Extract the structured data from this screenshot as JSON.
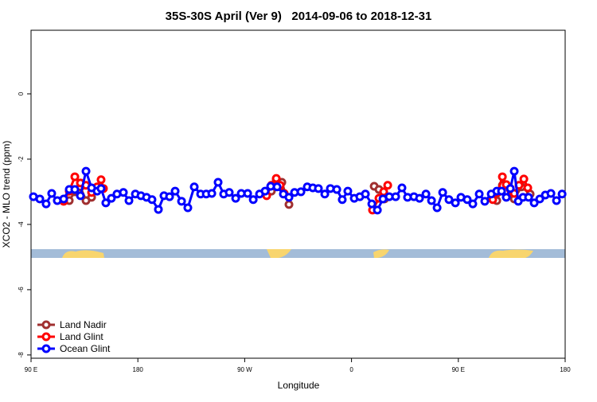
{
  "chart_data": {
    "type": "line",
    "title": "35S-30S April (Ver 9)   2014-09-06 to 2018-12-31",
    "x_label": "Longitude",
    "y_label": "XCO2 - MLO trend (ppm)",
    "xlim": [
      90,
      540
    ],
    "ylim": [
      -8.1,
      1.95
    ],
    "xticks": [
      {
        "value": 90,
        "label": "90 E"
      },
      180,
      {
        "value": 270,
        "label": "90 W"
      },
      {
        "value": 360,
        "label": "0"
      },
      {
        "value": 450,
        "label": "90 E"
      },
      {
        "value": 540,
        "label": "180"
      }
    ],
    "yticks": [
      0,
      -2,
      -4,
      -6,
      -8
    ],
    "legend": "bottom-left",
    "series": [
      {
        "name": "Land Nadir",
        "color": "#a03030",
        "x": [
          122.2,
          126.9,
          131.6,
          136.3,
          141.0,
          null,
          292.5,
          296.6,
          301.3,
          307.3,
          null,
          379.1,
          383.1,
          387.8,
          null,
          482.4,
          487.1,
          490.4,
          497.1,
          503.2,
          510.5
        ],
        "values": [
          -3.27,
          -3.0,
          -2.85,
          -3.27,
          -3.17,
          null,
          -2.98,
          -2.63,
          -2.71,
          -3.39,
          null,
          -2.83,
          -2.93,
          -3.22,
          null,
          -3.27,
          -2.8,
          -2.98,
          -3.22,
          -2.85,
          -3.07
        ]
      },
      {
        "name": "Land Glint",
        "color": "#ff0000",
        "x": [
          117.5,
          122.2,
          126.9,
          131.6,
          136.3,
          141.0,
          145.7,
          149.0,
          151.0,
          null,
          288.5,
          292.5,
          296.6,
          299.9,
          303.3,
          null,
          377.7,
          383.1,
          387.1,
          390.5,
          null,
          479.0,
          483.1,
          487.1,
          490.4,
          493.8,
          497.1,
          501.1,
          505.2,
          508.5
        ],
        "values": [
          -3.29,
          -2.98,
          -2.54,
          -2.73,
          -2.8,
          -3.02,
          -2.85,
          -2.63,
          -2.9,
          null,
          -3.12,
          -2.8,
          -2.59,
          -2.8,
          -3.05,
          null,
          -3.56,
          -3.2,
          -3.0,
          -2.8,
          null,
          -3.24,
          -3.02,
          -2.54,
          -2.78,
          -2.93,
          -3.05,
          -2.8,
          -2.61,
          -2.88
        ]
      },
      {
        "name": "Ocean Glint",
        "color": "#0000ff",
        "x": [
          92.0,
          97.4,
          102.7,
          107.4,
          112.1,
          117.5,
          122.2,
          126.9,
          131.6,
          136.3,
          141.0,
          145.7,
          149.0,
          153.0,
          157.7,
          162.4,
          167.8,
          172.5,
          177.9,
          182.6,
          187.3,
          191.9,
          197.3,
          202.0,
          206.7,
          211.4,
          216.8,
          222.1,
          227.5,
          232.9,
          237.6,
          242.3,
          247.6,
          252.3,
          257.0,
          262.4,
          267.1,
          272.5,
          277.2,
          282.5,
          287.2,
          291.9,
          297.3,
          302.6,
          307.3,
          312.0,
          317.4,
          322.7,
          327.4,
          332.1,
          337.5,
          342.2,
          347.6,
          352.2,
          356.9,
          362.3,
          367.0,
          371.7,
          377.1,
          381.8,
          386.5,
          391.8,
          397.2,
          402.5,
          407.2,
          412.6,
          417.3,
          422.7,
          427.4,
          432.1,
          436.8,
          442.1,
          447.5,
          452.2,
          457.5,
          462.2,
          467.6,
          472.3,
          477.7,
          482.4,
          486.4,
          490.4,
          493.8,
          497.1,
          500.5,
          504.5,
          509.2,
          513.9,
          518.6,
          523.3,
          528.0,
          532.7,
          537.4
        ],
        "values": [
          -3.15,
          -3.22,
          -3.37,
          -3.05,
          -3.27,
          -3.22,
          -2.93,
          -2.93,
          -3.12,
          -2.37,
          -2.88,
          -2.98,
          -2.9,
          -3.34,
          -3.2,
          -3.07,
          -3.02,
          -3.27,
          -3.07,
          -3.12,
          -3.17,
          -3.24,
          -3.54,
          -3.12,
          -3.15,
          -2.98,
          -3.29,
          -3.49,
          -2.85,
          -3.07,
          -3.07,
          -3.05,
          -2.71,
          -3.07,
          -3.02,
          -3.2,
          -3.05,
          -3.05,
          -3.24,
          -3.07,
          -2.98,
          -2.83,
          -2.85,
          -3.07,
          -3.17,
          -3.02,
          -3.0,
          -2.85,
          -2.88,
          -2.9,
          -3.07,
          -2.9,
          -2.93,
          -3.24,
          -2.98,
          -3.2,
          -3.15,
          -3.07,
          -3.37,
          -3.56,
          -3.22,
          -3.15,
          -3.15,
          -2.88,
          -3.17,
          -3.15,
          -3.2,
          -3.07,
          -3.27,
          -3.49,
          -3.02,
          -3.24,
          -3.34,
          -3.17,
          -3.24,
          -3.37,
          -3.07,
          -3.29,
          -3.07,
          -2.98,
          -2.98,
          -3.17,
          -2.9,
          -2.37,
          -3.29,
          -3.17,
          -3.17,
          -3.34,
          -3.22,
          -3.1,
          -3.05,
          -3.27,
          -3.07
        ]
      }
    ]
  }
}
